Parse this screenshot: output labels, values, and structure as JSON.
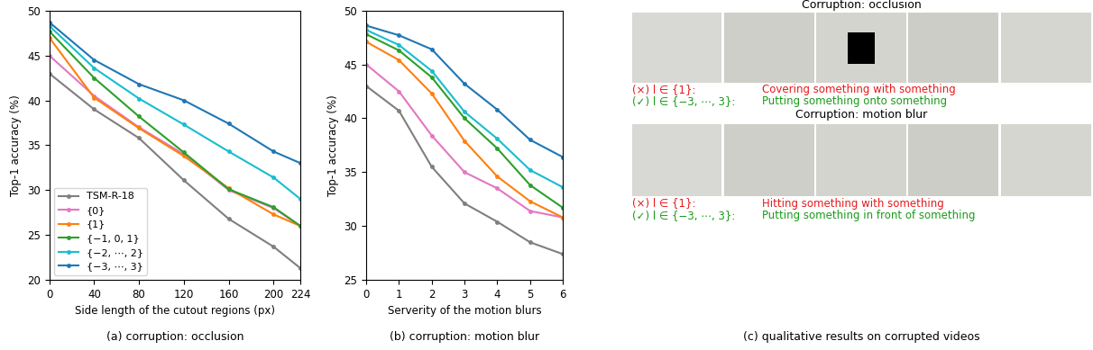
{
  "chart_data": [
    {
      "type": "line",
      "caption": "(a) corruption: occlusion",
      "x_label": "Side length of the cutout regions (px)",
      "y_label": "Top-1 accuracy (%)",
      "x": [
        0,
        40,
        80,
        120,
        160,
        200,
        224
      ],
      "xlim": [
        0,
        224
      ],
      "xticks": [
        0,
        40,
        80,
        120,
        160,
        200,
        224
      ],
      "ylim": [
        20,
        50
      ],
      "yticks": [
        20,
        25,
        30,
        35,
        40,
        45,
        50
      ],
      "marker": "o",
      "legend": "lower left",
      "series": [
        {
          "name": "TSM-R-18",
          "color": "#7f7f7f",
          "values": [
            43.0,
            39.0,
            35.8,
            31.1,
            26.8,
            23.7,
            21.3
          ]
        },
        {
          "name": "{0}",
          "color": "#e377c2",
          "values": [
            45.0,
            40.5,
            37.0,
            34.0,
            30.0,
            28.0,
            26.0
          ]
        },
        {
          "name": "{1}",
          "color": "#ff7f0e",
          "values": [
            47.0,
            40.3,
            36.9,
            33.8,
            30.2,
            27.3,
            26.0
          ]
        },
        {
          "name": "{−1, 0, 1}",
          "color": "#2ca02c",
          "values": [
            47.7,
            42.5,
            38.2,
            34.2,
            30.1,
            28.1,
            26.0
          ]
        },
        {
          "name": "{−2, ⋯, 2}",
          "color": "#17becf",
          "values": [
            48.3,
            43.6,
            40.2,
            37.3,
            34.3,
            31.4,
            29.0
          ]
        },
        {
          "name": "{−3, ⋯, 3}",
          "color": "#1f77b4",
          "values": [
            48.7,
            44.5,
            41.8,
            40.0,
            37.4,
            34.3,
            33.0
          ]
        }
      ]
    },
    {
      "type": "line",
      "caption": "(b) corruption: motion blur",
      "x_label": "Serverity of the motion blurs",
      "y_label": "Top-1 accuracy (%)",
      "x": [
        0,
        1,
        2,
        3,
        4,
        5,
        6
      ],
      "xlim": [
        0,
        6
      ],
      "xticks": [
        0,
        1,
        2,
        3,
        4,
        5,
        6
      ],
      "ylim": [
        25,
        50
      ],
      "yticks": [
        25,
        30,
        35,
        40,
        45,
        50
      ],
      "marker": "o",
      "series": [
        {
          "color": "#7f7f7f",
          "values": [
            43.0,
            40.7,
            35.5,
            32.1,
            30.4,
            28.5,
            27.4
          ]
        },
        {
          "color": "#e377c2",
          "values": [
            45.0,
            42.5,
            38.4,
            35.0,
            33.5,
            31.4,
            30.8
          ]
        },
        {
          "color": "#ff7f0e",
          "values": [
            47.1,
            45.4,
            42.3,
            37.9,
            34.6,
            32.3,
            30.8
          ]
        },
        {
          "color": "#2ca02c",
          "values": [
            47.8,
            46.3,
            43.8,
            40.0,
            37.2,
            33.8,
            31.7
          ]
        },
        {
          "color": "#17becf",
          "values": [
            48.2,
            46.8,
            44.4,
            40.6,
            38.1,
            35.2,
            33.6
          ]
        },
        {
          "color": "#1f77b4",
          "values": [
            48.6,
            47.7,
            46.4,
            43.2,
            40.8,
            38.0,
            36.4
          ]
        }
      ]
    }
  ],
  "panel_c": {
    "caption": "(c) qualitative results on corrupted videos",
    "examples": [
      {
        "title": "Corruption: occlusion",
        "predictions": [
          {
            "prefix": "(×) l ∈ {1}:",
            "text": "Covering something with something",
            "color": "#e41a1c"
          },
          {
            "prefix": "(✓) l ∈ {−3, ⋯, 3}:",
            "text": "Putting something onto something",
            "color": "#1a9a1a"
          }
        ]
      },
      {
        "title": "Corruption: motion blur",
        "predictions": [
          {
            "prefix": "(×) l ∈ {1}:",
            "text": "Hitting something with something",
            "color": "#e41a1c"
          },
          {
            "prefix": "(✓) l ∈ {−3, ⋯, 3}:",
            "text": "Putting something in front of something",
            "color": "#1a9a1a"
          }
        ]
      }
    ]
  }
}
